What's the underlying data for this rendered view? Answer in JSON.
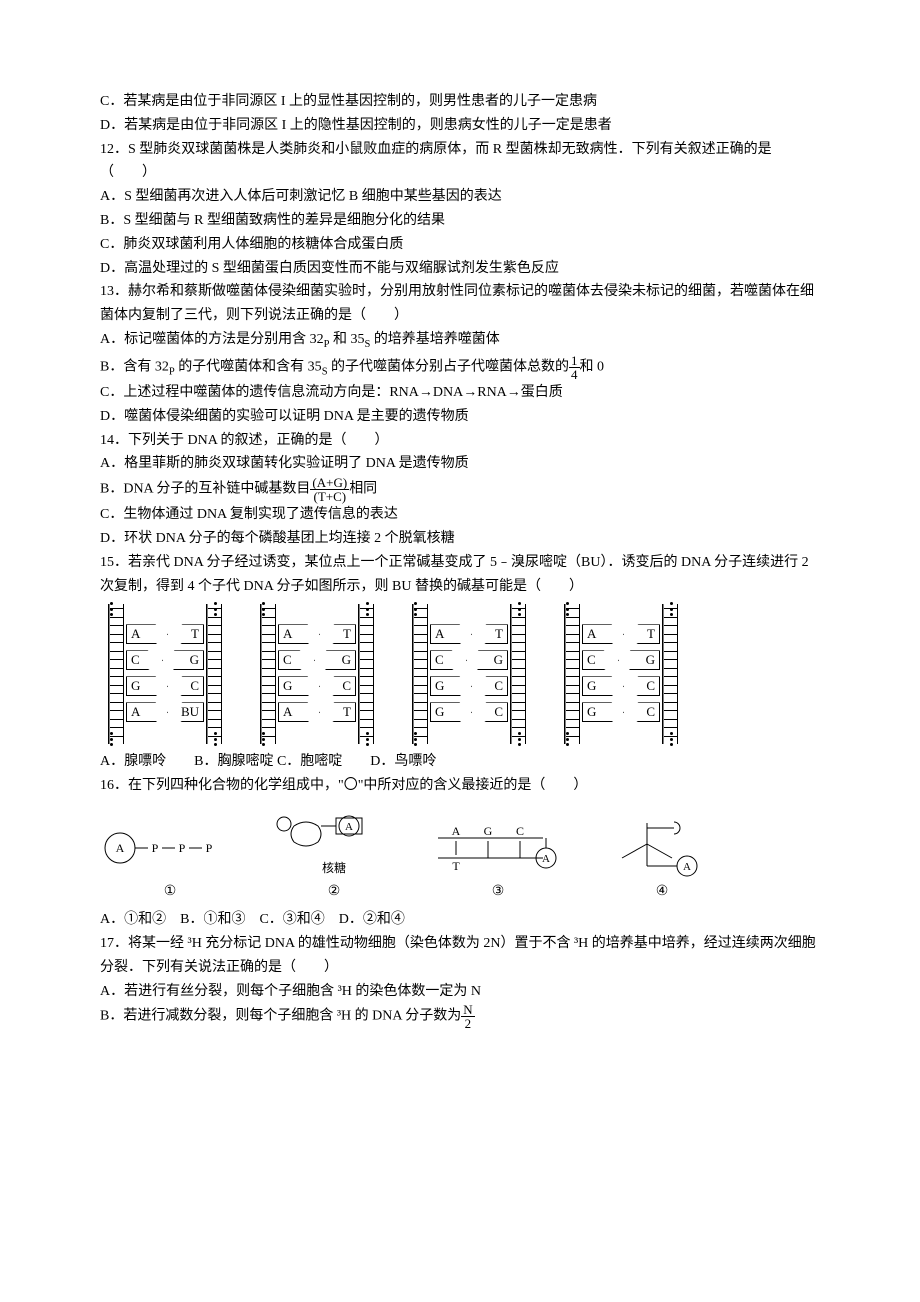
{
  "q11": {
    "optC": "C．若某病是由位于非同源区 I 上的显性基因控制的，则男性患者的儿子一定患病",
    "optD": "D．若某病是由位于非同源区 I 上的隐性基因控制的，则患病女性的儿子一定是患者"
  },
  "q12": {
    "stem1": "12．S 型肺炎双球菌菌株是人类肺炎和小鼠败血症的病原体，而 R 型菌株却无致病性．下列有关叙述正确的是",
    "paren": "（　　）",
    "optA": "A．S 型细菌再次进入人体后可刺激记忆 B 细胞中某些基因的表达",
    "optB": "B．S 型细菌与 R 型细菌致病性的差异是细胞分化的结果",
    "optC": "C．肺炎双球菌利用人体细胞的核糖体合成蛋白质",
    "optD": "D．高温处理过的 S 型细菌蛋白质因变性而不能与双缩脲试剂发生紫色反应"
  },
  "q13": {
    "stem": "13．赫尔希和蔡斯做噬菌体侵染细菌实验时，分别用放射性同位素标记的噬菌体去侵染未标记的细菌，若噬菌体在细菌体内复制了三代，则下列说法正确的是（　　）",
    "optA_pre": "A．标记噬菌体的方法是分别用含 32",
    "optA_mid": " 和 35",
    "optA_post": " 的培养基培养噬菌体",
    "optB_pre": "B．含有 32",
    "optB_mid1": " 的子代噬菌体和含有 35",
    "optB_mid2": " 的子代噬菌体分别占子代噬菌体总数的",
    "optB_post": "和 0",
    "frac_num": "1",
    "frac_den": "4",
    "optC": "C．上述过程中噬菌体的遗传信息流动方向是：RNA→DNA→RNA→蛋白质",
    "optD": "D．噬菌体侵染细菌的实验可以证明 DNA 是主要的遗传物质",
    "sub_P": "P",
    "sub_S": "S"
  },
  "q14": {
    "stem": "14．下列关于 DNA 的叙述，正确的是（　　）",
    "optA": "A．格里菲斯的肺炎双球菌转化实验证明了 DNA 是遗传物质",
    "optB_pre": "B．DNA 分子的互补链中碱基数目",
    "optB_post": "相同",
    "frac_num": "(A+G)",
    "frac_den": "(T+C)",
    "optC": "C．生物体通过 DNA 复制实现了遗传信息的表达",
    "optD": "D．环状 DNA 分子的每个磷酸基团上均连接 2 个脱氧核糖"
  },
  "q15": {
    "stem": "15．若亲代 DNA 分子经过诱变，某位点上一个正常碱基变成了 5﹣溴尿嘧啶（BU）．诱变后的 DNA 分子连续进行 2 次复制，得到 4 个子代 DNA 分子如图所示，则 BU 替换的碱基可能是（　　）",
    "diagrams": [
      {
        "pairs": [
          [
            "A",
            "T"
          ],
          [
            "C",
            "G"
          ],
          [
            "G",
            "C"
          ],
          [
            "A",
            "BU"
          ]
        ]
      },
      {
        "pairs": [
          [
            "A",
            "T"
          ],
          [
            "C",
            "G"
          ],
          [
            "G",
            "C"
          ],
          [
            "A",
            "T"
          ]
        ]
      },
      {
        "pairs": [
          [
            "A",
            "T"
          ],
          [
            "C",
            "G"
          ],
          [
            "G",
            "C"
          ],
          [
            "G",
            "C"
          ]
        ]
      },
      {
        "pairs": [
          [
            "A",
            "T"
          ],
          [
            "C",
            "G"
          ],
          [
            "G",
            "C"
          ],
          [
            "G",
            "C"
          ]
        ]
      }
    ],
    "opts": "A．腺嘌呤　　B．胸腺嘧啶 C．胞嘧啶　　D．鸟嘌呤"
  },
  "q16": {
    "stem": "16．在下列四种化合物的化学组成中，\"〇\"中所对应的含义最接近的是（　　）",
    "label_ribose": "核糖",
    "labels": [
      "①",
      "②",
      "③",
      "④"
    ],
    "opts": "A．①和②　B．①和③　C．③和④　D．②和④",
    "svg_text": {
      "A": "A",
      "P": "P",
      "T": "T",
      "G": "G",
      "C": "C"
    }
  },
  "q17": {
    "stem": "17．将某一经 ³H 充分标记 DNA 的雄性动物细胞（染色体数为 2N）置于不含 ³H 的培养基中培养，经过连续两次细胞分裂．下列有关说法正确的是（　　）",
    "optA": "A．若进行有丝分裂，则每个子细胞含 ³H 的染色体数一定为 N",
    "optB_pre": "B．若进行减数分裂，则每个子细胞含 ³H 的 DNA 分子数为",
    "frac_num": "N",
    "frac_den": "2"
  }
}
